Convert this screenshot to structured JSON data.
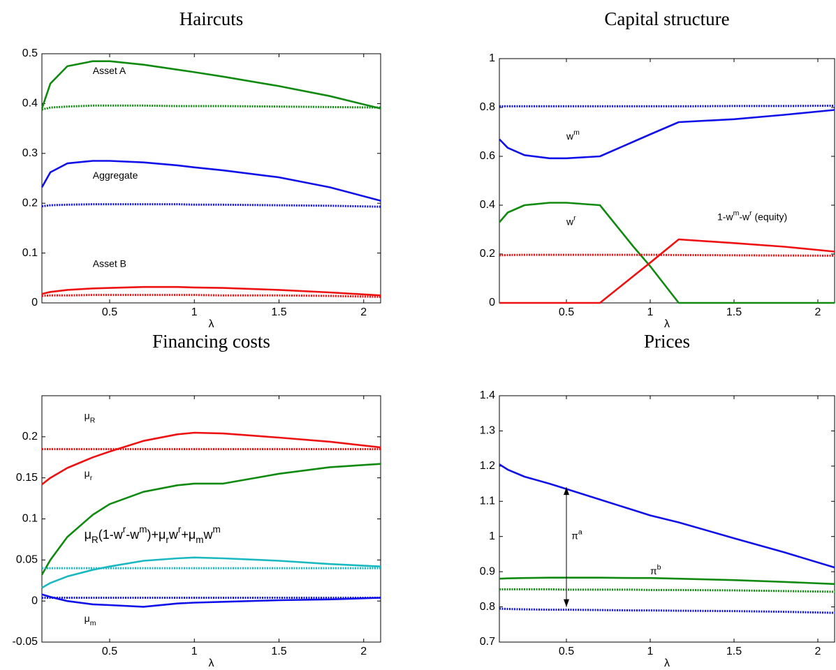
{
  "chart_data": [
    {
      "type": "line",
      "title": "Haircuts",
      "xlabel": "λ",
      "x": [
        0.1,
        0.15,
        0.25,
        0.4,
        0.5,
        0.7,
        0.9,
        1.0,
        1.17,
        1.5,
        1.8,
        2.1
      ],
      "xlim": [
        0.1,
        2.1
      ],
      "xticks": [
        0.5,
        1,
        1.5,
        2
      ],
      "ylim": [
        0,
        0.5
      ],
      "yticks": [
        0,
        0.1,
        0.2,
        0.3,
        0.4,
        0.5
      ],
      "series": [
        {
          "color": "#108a10",
          "style": "solid",
          "values": [
            0.39,
            0.44,
            0.475,
            0.485,
            0.485,
            0.478,
            0.468,
            0.463,
            0.454,
            0.435,
            0.415,
            0.39
          ]
        },
        {
          "color": "#108a10",
          "style": "dotted",
          "values": [
            0.388,
            0.392,
            0.394,
            0.396,
            0.396,
            0.396,
            0.395,
            0.395,
            0.395,
            0.394,
            0.393,
            0.392
          ]
        },
        {
          "color": "#1010e8",
          "style": "solid",
          "values": [
            0.232,
            0.262,
            0.28,
            0.285,
            0.285,
            0.282,
            0.276,
            0.272,
            0.266,
            0.252,
            0.232,
            0.205
          ]
        },
        {
          "color": "#1010e8",
          "style": "dotted",
          "values": [
            0.194,
            0.196,
            0.197,
            0.198,
            0.198,
            0.198,
            0.198,
            0.197,
            0.197,
            0.196,
            0.195,
            0.193
          ]
        },
        {
          "color": "#ee1111",
          "style": "solid",
          "values": [
            0.018,
            0.022,
            0.026,
            0.029,
            0.03,
            0.032,
            0.032,
            0.031,
            0.03,
            0.026,
            0.021,
            0.015
          ]
        },
        {
          "color": "#ee1111",
          "style": "dotted",
          "values": [
            0.014,
            0.015,
            0.015,
            0.016,
            0.016,
            0.016,
            0.016,
            0.016,
            0.015,
            0.015,
            0.014,
            0.012
          ]
        }
      ],
      "annotations": [
        {
          "x": 0.4,
          "y": 0.465,
          "parts": [
            {
              "text": "Asset A"
            }
          ]
        },
        {
          "x": 0.4,
          "y": 0.255,
          "parts": [
            {
              "text": "Aggregate"
            }
          ]
        },
        {
          "x": 0.4,
          "y": 0.078,
          "parts": [
            {
              "text": "Asset B"
            }
          ]
        }
      ]
    },
    {
      "type": "line",
      "title": "Capital structure",
      "xlabel": "λ",
      "x": [
        0.1,
        0.15,
        0.25,
        0.4,
        0.5,
        0.7,
        0.9,
        1.0,
        1.17,
        1.5,
        1.8,
        2.1
      ],
      "xlim": [
        0.1,
        2.1
      ],
      "xticks": [
        0.5,
        1,
        1.5,
        2
      ],
      "ylim": [
        0,
        1
      ],
      "yticks": [
        0,
        0.2,
        0.4,
        0.6,
        0.8,
        1
      ],
      "series": [
        {
          "color": "#1010e8",
          "style": "dotted",
          "values": [
            0.805,
            0.805,
            0.805,
            0.805,
            0.805,
            0.805,
            0.805,
            0.805,
            0.805,
            0.806,
            0.806,
            0.807
          ]
        },
        {
          "color": "#1010e8",
          "style": "solid",
          "values": [
            0.67,
            0.635,
            0.605,
            0.592,
            0.592,
            0.6,
            0.66,
            0.69,
            0.74,
            0.752,
            0.77,
            0.79
          ]
        },
        {
          "color": "#108a10",
          "style": "solid",
          "values": [
            0.33,
            0.37,
            0.4,
            0.41,
            0.41,
            0.4,
            0.23,
            0.15,
            0,
            0,
            0,
            0
          ]
        },
        {
          "color": "#ee1111",
          "style": "solid",
          "values": [
            0,
            0,
            0,
            0,
            0,
            0,
            0.11,
            0.165,
            0.26,
            0.245,
            0.23,
            0.21
          ]
        },
        {
          "color": "#ee1111",
          "style": "dotted",
          "values": [
            0.195,
            0.196,
            0.197,
            0.197,
            0.197,
            0.197,
            0.197,
            0.197,
            0.196,
            0.195,
            0.194,
            0.193
          ]
        }
      ],
      "annotations": [
        {
          "x": 0.5,
          "y": 0.68,
          "parts": [
            {
              "text": "w"
            },
            {
              "text": "m",
              "sup": true
            }
          ]
        },
        {
          "x": 0.5,
          "y": 0.33,
          "parts": [
            {
              "text": "w"
            },
            {
              "text": "r",
              "sup": true
            }
          ]
        },
        {
          "x": 1.4,
          "y": 0.35,
          "parts": [
            {
              "text": "1-w"
            },
            {
              "text": "m",
              "sup": true
            },
            {
              "text": "-w"
            },
            {
              "text": "r",
              "sup": true
            },
            {
              "text": "  (equity)"
            }
          ]
        }
      ]
    },
    {
      "type": "line",
      "title": "Financing costs",
      "xlabel": "λ",
      "x": [
        0.1,
        0.15,
        0.25,
        0.4,
        0.5,
        0.7,
        0.9,
        1.0,
        1.17,
        1.5,
        1.8,
        2.1
      ],
      "xlim": [
        0.1,
        2.1
      ],
      "xticks": [
        0.5,
        1,
        1.5,
        2
      ],
      "ylim": [
        -0.05,
        0.25
      ],
      "yticks": [
        -0.05,
        0,
        0.05,
        0.1,
        0.15,
        0.2
      ],
      "series": [
        {
          "color": "#ee1111",
          "style": "solid",
          "values": [
            0.142,
            0.15,
            0.162,
            0.175,
            0.182,
            0.195,
            0.203,
            0.205,
            0.204,
            0.199,
            0.194,
            0.187
          ]
        },
        {
          "color": "#ee1111",
          "style": "dotted",
          "values": [
            0.185,
            0.185,
            0.185,
            0.185,
            0.185,
            0.185,
            0.185,
            0.185,
            0.185,
            0.185,
            0.185,
            0.185
          ]
        },
        {
          "color": "#108a10",
          "style": "solid",
          "values": [
            0.032,
            0.05,
            0.078,
            0.105,
            0.118,
            0.133,
            0.141,
            0.143,
            0.143,
            0.155,
            0.163,
            0.167
          ]
        },
        {
          "color": "#1ab8c0",
          "style": "solid",
          "values": [
            0.016,
            0.022,
            0.03,
            0.038,
            0.042,
            0.049,
            0.052,
            0.053,
            0.052,
            0.049,
            0.045,
            0.042
          ]
        },
        {
          "color": "#1ab8c0",
          "style": "dotted",
          "values": [
            0.04,
            0.04,
            0.04,
            0.04,
            0.04,
            0.04,
            0.04,
            0.04,
            0.04,
            0.04,
            0.04,
            0.04
          ]
        },
        {
          "color": "#1010e8",
          "style": "solid",
          "values": [
            0.008,
            0.005,
            0.0,
            -0.004,
            -0.005,
            -0.007,
            -0.003,
            -0.002,
            -0.001,
            0.001,
            0.002,
            0.004
          ]
        },
        {
          "color": "#1010e8",
          "style": "dotted",
          "values": [
            0.004,
            0.004,
            0.004,
            0.004,
            0.004,
            0.004,
            0.004,
            0.004,
            0.004,
            0.004,
            0.004,
            0.004
          ]
        }
      ],
      "annotations": [
        {
          "x": 0.35,
          "y": 0.225,
          "parts": [
            {
              "text": "μ"
            },
            {
              "text": "R",
              "sub": true
            }
          ]
        },
        {
          "x": 0.35,
          "y": 0.155,
          "parts": [
            {
              "text": "μ"
            },
            {
              "text": "r",
              "sub": true
            }
          ]
        },
        {
          "x": 0.35,
          "y": 0.08,
          "big": true,
          "parts": [
            {
              "text": "μ"
            },
            {
              "text": "R",
              "sub": true
            },
            {
              "text": "(1-w"
            },
            {
              "text": "r",
              "sup": true
            },
            {
              "text": "-w"
            },
            {
              "text": "m",
              "sup": true
            },
            {
              "text": ")+μ"
            },
            {
              "text": "r",
              "sub": true
            },
            {
              "text": "w"
            },
            {
              "text": "r",
              "sup": true
            },
            {
              "text": "+μ"
            },
            {
              "text": "m",
              "sub": true
            },
            {
              "text": "w"
            },
            {
              "text": "m",
              "sup": true
            }
          ]
        },
        {
          "x": 0.35,
          "y": -0.022,
          "parts": [
            {
              "text": "μ"
            },
            {
              "text": "m",
              "sub": true
            }
          ]
        }
      ]
    },
    {
      "type": "line",
      "title": "Prices",
      "xlabel": "λ",
      "x": [
        0.1,
        0.15,
        0.25,
        0.4,
        0.5,
        0.7,
        0.9,
        1.0,
        1.17,
        1.5,
        1.8,
        2.1
      ],
      "xlim": [
        0.1,
        2.1
      ],
      "xticks": [
        0.5,
        1,
        1.5,
        2
      ],
      "ylim": [
        0.7,
        1.4
      ],
      "yticks": [
        0.7,
        0.8,
        0.9,
        1,
        1.1,
        1.2,
        1.3,
        1.4
      ],
      "series": [
        {
          "color": "#1010e8",
          "style": "solid",
          "values": [
            1.205,
            1.19,
            1.17,
            1.15,
            1.135,
            1.105,
            1.075,
            1.06,
            1.04,
            0.995,
            0.955,
            0.912
          ]
        },
        {
          "color": "#108a10",
          "style": "solid",
          "values": [
            0.88,
            0.881,
            0.882,
            0.883,
            0.883,
            0.883,
            0.882,
            0.882,
            0.88,
            0.876,
            0.871,
            0.865
          ]
        },
        {
          "color": "#108a10",
          "style": "dotted",
          "values": [
            0.85,
            0.85,
            0.85,
            0.85,
            0.849,
            0.849,
            0.849,
            0.848,
            0.848,
            0.847,
            0.845,
            0.843
          ]
        },
        {
          "color": "#1010e8",
          "style": "dotted",
          "values": [
            0.795,
            0.794,
            0.793,
            0.792,
            0.792,
            0.791,
            0.79,
            0.79,
            0.789,
            0.788,
            0.786,
            0.783
          ]
        }
      ],
      "arrows": [
        {
          "x": 0.5,
          "y1": 0.8,
          "y2": 1.14
        }
      ],
      "annotations": [
        {
          "x": 0.53,
          "y": 1.0,
          "parts": [
            {
              "text": "π"
            },
            {
              "text": "a",
              "sup": true
            }
          ]
        },
        {
          "x": 1.0,
          "y": 0.9,
          "parts": [
            {
              "text": "π"
            },
            {
              "text": "b",
              "sup": true
            }
          ]
        }
      ]
    }
  ]
}
